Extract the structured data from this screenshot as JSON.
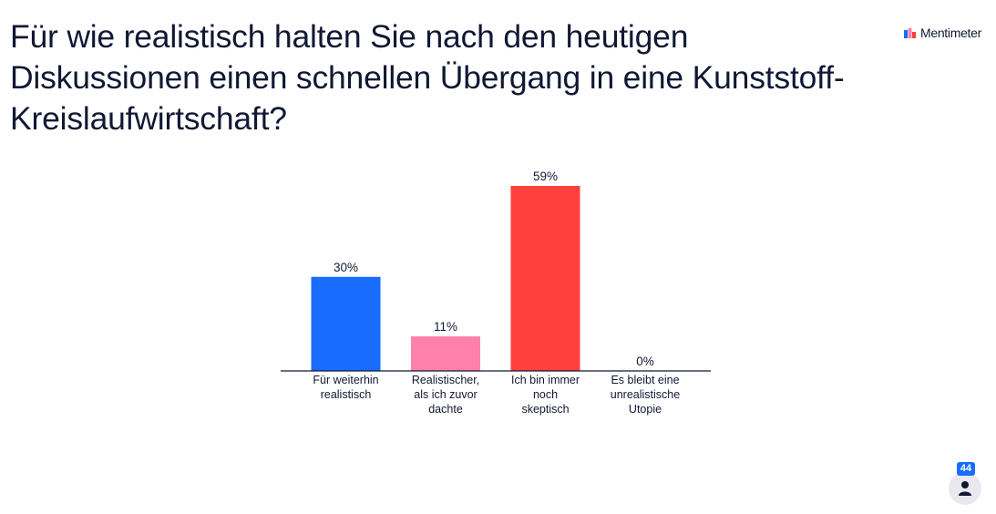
{
  "question": "Für wie realistisch halten Sie nach den heutigen Diskussionen einen schnellen Übergang in eine Kunststoff-Kreislaufwirtschaft?",
  "brand": {
    "name": "Mentimeter",
    "icon": "mentimeter-logo-icon"
  },
  "participants": {
    "count": "44",
    "icon": "person-icon"
  },
  "chart_data": {
    "type": "bar",
    "categories": [
      [
        "Für weiterhin",
        "realistisch"
      ],
      [
        "Realistischer,",
        "als ich zuvor",
        "dachte"
      ],
      [
        "Ich bin immer",
        "noch",
        "skeptisch"
      ],
      [
        "Es bleibt eine",
        "unrealistische",
        "Utopie"
      ]
    ],
    "values": [
      30,
      11,
      59,
      0
    ],
    "value_labels": [
      "30%",
      "11%",
      "59%",
      "0%"
    ],
    "colors": [
      "#196cff",
      "#ff80ab",
      "#ff403d",
      "#ffb800"
    ],
    "ylim": [
      0,
      59
    ],
    "grid": false,
    "title": "",
    "xlabel": "",
    "ylabel": ""
  }
}
